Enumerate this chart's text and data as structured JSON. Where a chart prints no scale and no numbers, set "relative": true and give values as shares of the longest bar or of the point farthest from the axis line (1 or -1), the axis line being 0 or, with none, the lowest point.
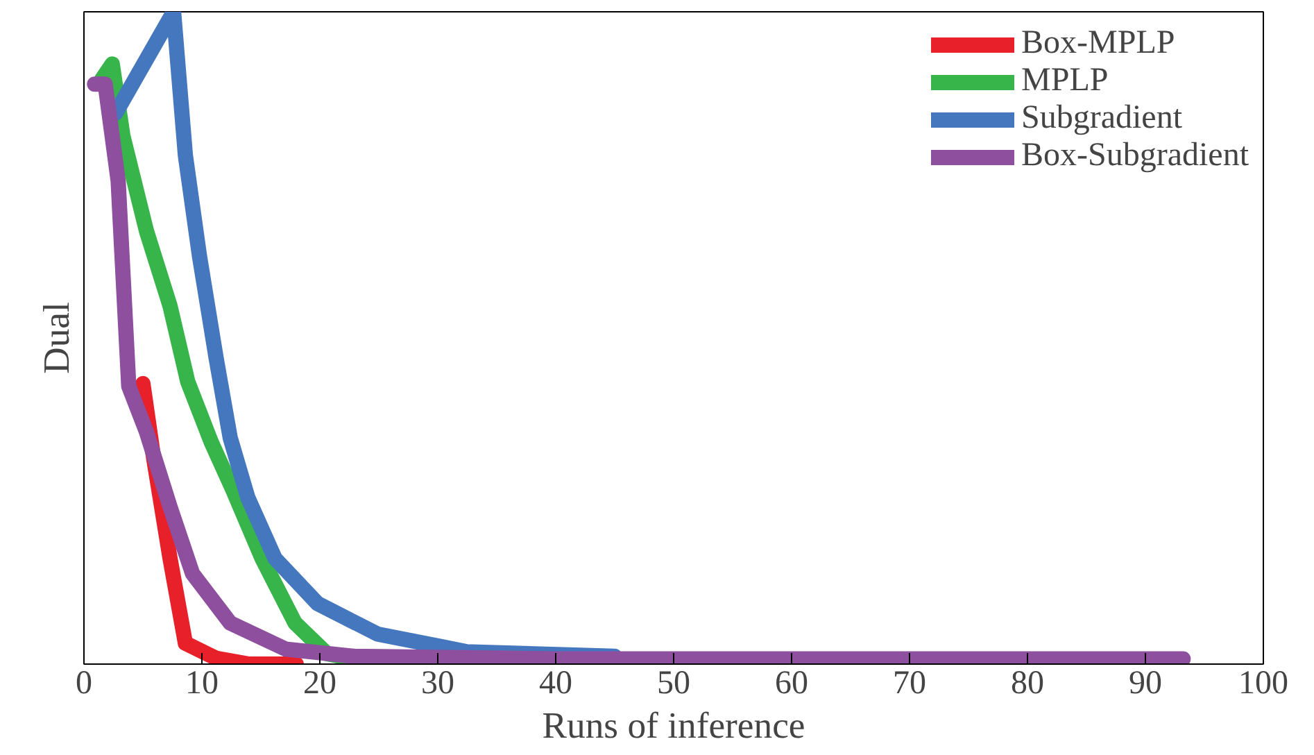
{
  "chart_data": {
    "type": "line",
    "relative": true,
    "xlabel": "Runs of inference",
    "ylabel": "Dual",
    "xlim": [
      0,
      100
    ],
    "xticks": [
      0,
      10,
      20,
      30,
      40,
      50,
      60,
      70,
      80,
      90,
      100
    ],
    "legend": "top right",
    "grid": false,
    "line_style": "solid",
    "series": [
      {
        "name": "Box-MPLP",
        "color": "#e8202a",
        "x": [
          5.0,
          5.9,
          7.3,
          8.6,
          11.2,
          14,
          18
        ],
        "values": [
          0.43,
          0.317,
          0.162,
          0.032,
          0.009,
          0,
          0
        ]
      },
      {
        "name": "MPLP",
        "color": "#37b44a",
        "x": [
          1.5,
          2.4,
          3.3,
          5.3,
          7.3,
          8.8,
          10.8,
          12.7,
          15.1,
          17.9,
          20.6,
          25,
          36.5
        ],
        "values": [
          0.896,
          0.92,
          0.81,
          0.664,
          0.549,
          0.433,
          0.34,
          0.264,
          0.162,
          0.063,
          0.016,
          0,
          0
        ]
      },
      {
        "name": "Subgradient",
        "color": "#4477bd",
        "x": [
          2.7,
          7.6,
          8.6,
          9.8,
          11.2,
          12.4,
          13.9,
          16.2,
          19.8,
          24.9,
          30,
          32.4,
          45
        ],
        "values": [
          0.845,
          1.0,
          0.78,
          0.625,
          0.47,
          0.347,
          0.255,
          0.162,
          0.093,
          0.046,
          0.028,
          0.019,
          0.012
        ]
      },
      {
        "name": "Box-Subgradient",
        "color": "#8e4f9e",
        "x": [
          0.9,
          1.8,
          2.9,
          3.8,
          5.3,
          7.3,
          9.2,
          12.4,
          17.1,
          22.9,
          40,
          93.2
        ],
        "values": [
          0.889,
          0.889,
          0.741,
          0.426,
          0.356,
          0.241,
          0.139,
          0.063,
          0.023,
          0.012,
          0.008,
          0.008
        ]
      }
    ]
  }
}
